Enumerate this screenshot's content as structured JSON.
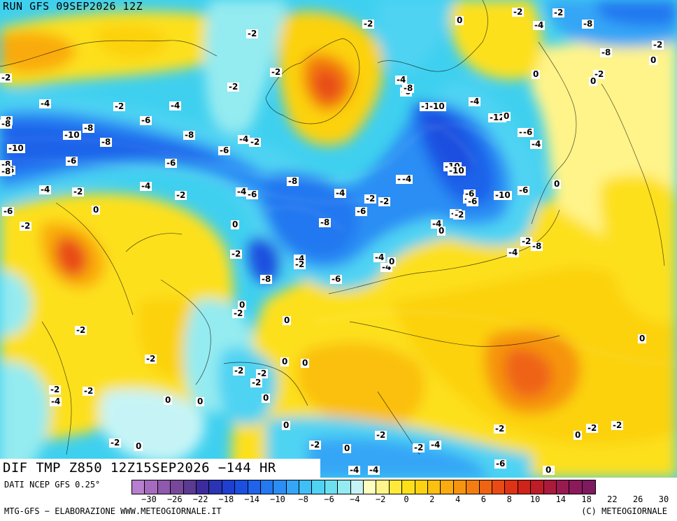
{
  "map": {
    "run_label": "RUN GFS 09SEP2026 12Z",
    "field_label": "DIF TMP Z850 12Z15SEP2026 −144 HR",
    "anomaly_labels": [
      {
        "value": "-2"
      },
      {
        "value": "0"
      },
      {
        "value": "-2"
      },
      {
        "value": "-4"
      },
      {
        "value": "-6"
      },
      {
        "value": "-2"
      },
      {
        "value": "-2"
      },
      {
        "value": "-8"
      },
      {
        "value": "-4"
      },
      {
        "value": "-2"
      },
      {
        "value": "-2"
      },
      {
        "value": "0"
      },
      {
        "value": "-2"
      },
      {
        "value": "-4"
      },
      {
        "value": "-6"
      },
      {
        "value": "-8"
      },
      {
        "value": "-2"
      },
      {
        "value": "-4"
      },
      {
        "value": "-6"
      },
      {
        "value": "-8"
      },
      {
        "value": "-12"
      },
      {
        "value": "-10"
      },
      {
        "value": "-2"
      },
      {
        "value": "-4"
      },
      {
        "value": "0"
      },
      {
        "value": "-6"
      },
      {
        "value": "-8"
      },
      {
        "value": "-8"
      },
      {
        "value": "-10"
      },
      {
        "value": "-8"
      },
      {
        "value": "-6"
      },
      {
        "value": "-8"
      },
      {
        "value": "-2"
      },
      {
        "value": "-6"
      },
      {
        "value": "-4"
      },
      {
        "value": "-2"
      },
      {
        "value": "-10"
      },
      {
        "value": "-8"
      },
      {
        "value": "-6"
      },
      {
        "value": "-4"
      },
      {
        "value": "-2"
      },
      {
        "value": "-10"
      },
      {
        "value": "-12"
      },
      {
        "value": "-10"
      },
      {
        "value": "-6"
      },
      {
        "value": "-4"
      },
      {
        "value": "-6"
      },
      {
        "value": "-4"
      },
      {
        "value": "0"
      },
      {
        "value": "0"
      },
      {
        "value": "-8"
      },
      {
        "value": "-6"
      },
      {
        "value": "-6"
      },
      {
        "value": "-4"
      },
      {
        "value": "-2"
      },
      {
        "value": "-4"
      },
      {
        "value": "-2"
      },
      {
        "value": "-4"
      },
      {
        "value": "-6"
      },
      {
        "value": "-8"
      },
      {
        "value": "-6"
      },
      {
        "value": "-2"
      },
      {
        "value": "-4"
      },
      {
        "value": "-2"
      },
      {
        "value": "0"
      },
      {
        "value": "-8"
      },
      {
        "value": "-10"
      },
      {
        "value": "-6"
      },
      {
        "value": "-8"
      },
      {
        "value": "-6"
      },
      {
        "value": "-2"
      },
      {
        "value": "-4"
      },
      {
        "value": "-8"
      },
      {
        "value": "-6"
      },
      {
        "value": "-4"
      },
      {
        "value": "-2"
      },
      {
        "value": "-4"
      },
      {
        "value": "0"
      },
      {
        "value": "0"
      },
      {
        "value": "-2"
      },
      {
        "value": "-4"
      },
      {
        "value": "-2"
      },
      {
        "value": "-8"
      },
      {
        "value": "-6"
      },
      {
        "value": "-4"
      },
      {
        "value": "-2"
      },
      {
        "value": "0"
      },
      {
        "value": "0"
      },
      {
        "value": "-2"
      },
      {
        "value": "0"
      },
      {
        "value": "0"
      },
      {
        "value": "-2"
      },
      {
        "value": "0"
      },
      {
        "value": "-2"
      },
      {
        "value": "0"
      },
      {
        "value": "-2"
      },
      {
        "value": "-4"
      },
      {
        "value": "-2"
      },
      {
        "value": "-2"
      },
      {
        "value": "0"
      },
      {
        "value": "0"
      },
      {
        "value": "-2"
      },
      {
        "value": "-2"
      },
      {
        "value": "0"
      },
      {
        "value": "0"
      },
      {
        "value": "-2"
      },
      {
        "value": "0"
      },
      {
        "value": "-2"
      },
      {
        "value": "0"
      },
      {
        "value": "-2"
      },
      {
        "value": "-4"
      },
      {
        "value": "-2"
      },
      {
        "value": "-6"
      },
      {
        "value": "-4"
      },
      {
        "value": "0"
      },
      {
        "value": "-2"
      },
      {
        "value": "-4"
      },
      {
        "value": "-2"
      },
      {
        "value": "0"
      },
      {
        "value": "0"
      },
      {
        "value": "-2"
      },
      {
        "value": "-2"
      }
    ]
  },
  "legend": {
    "source": "DATI NCEP GFS 0.25°",
    "credit_left": "MTG-GFS − ELABORAZIONE WWW.METEOGIORNALE.IT",
    "credit_right": "(C) METEOGIORNALE",
    "colors": [
      "#b77fcf",
      "#a56bbf",
      "#8f59ad",
      "#77489a",
      "#5b3a92",
      "#3b2b9c",
      "#2a34b5",
      "#1f3fd0",
      "#1a4fe0",
      "#1f63ea",
      "#2478f0",
      "#2c8ef4",
      "#35a6f6",
      "#3fbff6",
      "#4fd3f3",
      "#6de0ef",
      "#94ebf0",
      "#c6f4f6",
      "#ffffbf",
      "#fff48a",
      "#ffea3c",
      "#fde01a",
      "#fcd211",
      "#fbc010",
      "#f9ab0f",
      "#f6940f",
      "#f37d10",
      "#ef6412",
      "#e84b14",
      "#de3316",
      "#cf2419",
      "#bd1d27",
      "#aa1a3a",
      "#981a4f",
      "#8b1a5a",
      "#7e1a60"
    ],
    "ticks": [
      "−30",
      "−26",
      "−22",
      "−18",
      "−14",
      "−10",
      "−8",
      "−6",
      "−4",
      "−2",
      "0",
      "2",
      "4",
      "6",
      "8",
      "10",
      "14",
      "18",
      "22",
      "26",
      "30"
    ]
  }
}
